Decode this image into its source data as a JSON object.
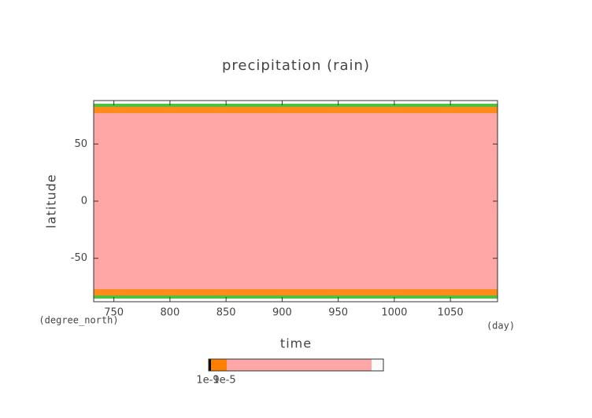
{
  "chart_data": {
    "type": "heatmap",
    "title": "precipitation (rain)",
    "x_label": "time",
    "x_units": "(day)",
    "y_label": "latitude",
    "y_units": "(degree_north)",
    "xlim": [
      732,
      1092
    ],
    "ylim": [
      -88,
      88
    ],
    "xticks": [
      750,
      800,
      850,
      900,
      950,
      1000,
      1050
    ],
    "yticks": [
      -50,
      0,
      50
    ],
    "fill_color": "#ffa6a6",
    "edge_colors": [
      "#ff8c1a",
      "#4cc33a"
    ],
    "colorbar": {
      "colors": [
        "#000000",
        "#ff7f00",
        "#ffa6a6",
        "#fafafa"
      ],
      "labels": [
        "1e-9",
        "1e-5"
      ]
    }
  }
}
